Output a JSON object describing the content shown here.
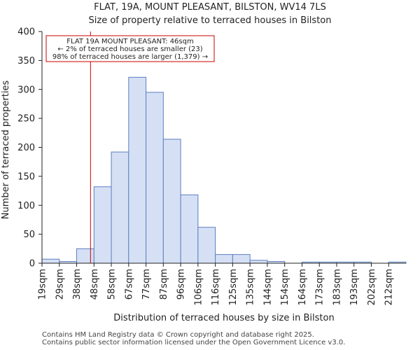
{
  "chart_data": {
    "type": "bar",
    "title_lines": [
      "FLAT, 19A, MOUNT PLEASANT, BILSTON, WV14 7LS",
      "Size of property relative to terraced houses in Bilston"
    ],
    "xlabel": "Distribution of terraced houses by size in Bilston",
    "ylabel": "Number of terraced properties",
    "ylim": [
      0,
      400
    ],
    "yticks": [
      0,
      50,
      100,
      150,
      200,
      250,
      300,
      350,
      400
    ],
    "categories": [
      "19sqm",
      "29sqm",
      "38sqm",
      "48sqm",
      "58sqm",
      "67sqm",
      "77sqm",
      "87sqm",
      "96sqm",
      "106sqm",
      "116sqm",
      "125sqm",
      "135sqm",
      "144sqm",
      "154sqm",
      "164sqm",
      "173sqm",
      "183sqm",
      "193sqm",
      "202sqm",
      "212sqm"
    ],
    "values": [
      7,
      3,
      25,
      132,
      192,
      321,
      295,
      214,
      118,
      62,
      15,
      15,
      5,
      3,
      0,
      2,
      2,
      2,
      2,
      0,
      2
    ],
    "marker": {
      "value_sqm": 46,
      "position_bins": 2.8,
      "color": "#cc0000"
    },
    "annotation": {
      "lines": [
        "FLAT 19A MOUNT PLEASANT: 46sqm",
        "← 2% of terraced houses are smaller (23)",
        "98% of terraced houses are larger (1,379) →"
      ]
    },
    "bar_fill": "#d6e0f5",
    "bar_stroke": "#5b7fbf",
    "grid": false
  },
  "footer": {
    "line1": "Contains HM Land Registry data © Crown copyright and database right 2025.",
    "line2": "Contains public sector information licensed under the Open Government Licence v3.0."
  }
}
